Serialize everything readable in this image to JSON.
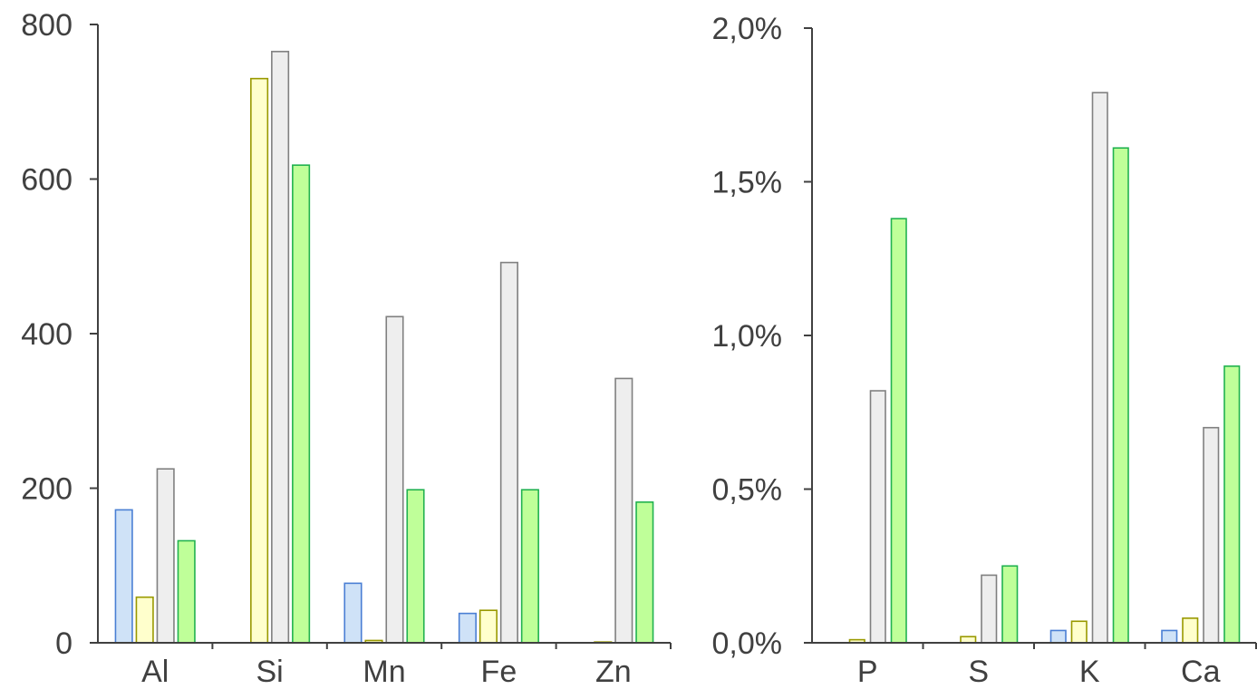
{
  "chart_data": [
    {
      "type": "bar",
      "categories": [
        "Al",
        "Si",
        "Mn",
        "Fe",
        "Zn"
      ],
      "ylim": [
        0,
        800
      ],
      "yticks": [
        0,
        200,
        400,
        600,
        800
      ],
      "ytick_labels": [
        "0",
        "200",
        "400",
        "600",
        "800"
      ],
      "xlabel": "",
      "ylabel": "",
      "series": [
        {
          "values": [
            172,
            0,
            77,
            38,
            0
          ],
          "fill": "#cfe2f7",
          "stroke": "#4a7fd4"
        },
        {
          "values": [
            59,
            730,
            3,
            42,
            1
          ],
          "fill": "#ffffcc",
          "stroke": "#999900"
        },
        {
          "values": [
            225,
            765,
            422,
            492,
            342
          ],
          "fill": "#eeeeee",
          "stroke": "#808080"
        },
        {
          "values": [
            132,
            618,
            198,
            198,
            182
          ],
          "fill": "#bfff99",
          "stroke": "#21b24f"
        }
      ]
    },
    {
      "type": "bar",
      "categories": [
        "P",
        "S",
        "K",
        "Ca"
      ],
      "ylim": [
        0,
        2.0
      ],
      "yticks": [
        0,
        0.5,
        1.0,
        1.5,
        2.0
      ],
      "ytick_labels": [
        "0,0%",
        "0,5%",
        "1,0%",
        "1,5%",
        "2,0%"
      ],
      "unit": "%",
      "xlabel": "",
      "ylabel": "",
      "series": [
        {
          "values": [
            0,
            0,
            0.04,
            0.04
          ],
          "fill": "#cfe2f7",
          "stroke": "#4a7fd4"
        },
        {
          "values": [
            0.01,
            0.02,
            0.07,
            0.08
          ],
          "fill": "#ffffcc",
          "stroke": "#999900"
        },
        {
          "values": [
            0.82,
            0.22,
            1.79,
            0.7
          ],
          "fill": "#eeeeee",
          "stroke": "#808080"
        },
        {
          "values": [
            1.38,
            0.25,
            1.61,
            0.9
          ],
          "fill": "#bfff99",
          "stroke": "#21b24f"
        }
      ]
    }
  ]
}
